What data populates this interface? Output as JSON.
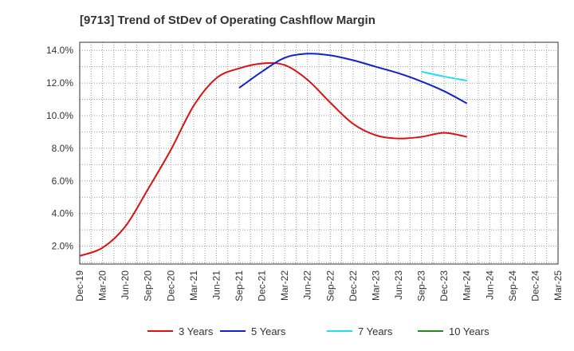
{
  "chart_data": {
    "type": "line",
    "title": "[9713]  Trend of StDev of Operating Cashflow Margin",
    "xlabel": "",
    "ylabel": "",
    "x_ticks": [
      "Dec-19",
      "Mar-20",
      "Jun-20",
      "Sep-20",
      "Dec-20",
      "Mar-21",
      "Jun-21",
      "Sep-21",
      "Dec-21",
      "Mar-22",
      "Jun-22",
      "Sep-22",
      "Dec-22",
      "Mar-23",
      "Jun-23",
      "Sep-23",
      "Dec-23",
      "Mar-24",
      "Jun-24",
      "Sep-24",
      "Dec-24",
      "Mar-25"
    ],
    "y_ticks": [
      2.0,
      4.0,
      6.0,
      8.0,
      10.0,
      12.0,
      14.0
    ],
    "y_tick_labels": [
      "2.0%",
      "4.0%",
      "6.0%",
      "8.0%",
      "10.0%",
      "12.0%",
      "14.0%"
    ],
    "ylim": [
      0.9,
      14.5
    ],
    "grid": true,
    "legend_position": "bottom",
    "series": [
      {
        "name": "3 Years",
        "color": "#dd1111",
        "x": [
          "Dec-19",
          "Mar-20",
          "Jun-20",
          "Sep-20",
          "Dec-20",
          "Mar-21",
          "Jun-21",
          "Sep-21",
          "Dec-21",
          "Mar-22",
          "Jun-22",
          "Sep-22",
          "Dec-22",
          "Mar-23",
          "Jun-23",
          "Sep-23",
          "Dec-23",
          "Mar-24"
        ],
        "values": [
          1.4,
          1.9,
          3.2,
          5.5,
          7.9,
          10.6,
          12.3,
          12.9,
          13.2,
          13.1,
          12.2,
          10.8,
          9.5,
          8.8,
          8.6,
          8.7,
          8.95,
          8.7
        ]
      },
      {
        "name": "5 Years",
        "color": "#1122cc",
        "x": [
          "Sep-21",
          "Dec-21",
          "Mar-22",
          "Jun-22",
          "Sep-22",
          "Dec-22",
          "Mar-23",
          "Jun-23",
          "Sep-23",
          "Dec-23",
          "Mar-24"
        ],
        "values": [
          11.7,
          12.7,
          13.55,
          13.8,
          13.7,
          13.4,
          13.0,
          12.6,
          12.1,
          11.5,
          10.75
        ]
      },
      {
        "name": "7 Years",
        "color": "#22ddee",
        "x": [
          "Sep-23",
          "Dec-23",
          "Mar-24"
        ],
        "values": [
          12.7,
          12.4,
          12.15
        ]
      },
      {
        "name": "10 Years",
        "color": "#228822",
        "x": [],
        "values": []
      }
    ]
  }
}
